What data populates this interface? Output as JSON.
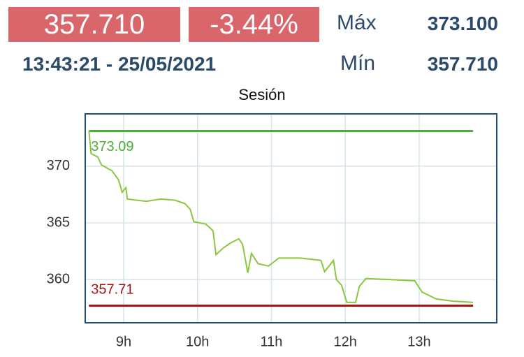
{
  "header": {
    "price": "357.710",
    "change": "-3.44%",
    "max_label": "Máx",
    "max_value": "373.100",
    "timestamp": "13:43:21 - 25/05/2021",
    "min_label": "Mín",
    "min_value": "357.710"
  },
  "chart_data": {
    "type": "line",
    "title": "Sesión",
    "x": [
      8.53,
      8.56,
      8.65,
      8.7,
      8.84,
      8.93,
      8.98,
      9.03,
      9.05,
      9.17,
      9.31,
      9.5,
      9.69,
      9.83,
      9.9,
      9.95,
      10.11,
      10.21,
      10.25,
      10.35,
      10.44,
      10.56,
      10.61,
      10.68,
      10.73,
      10.82,
      10.96,
      11.1,
      11.39,
      11.67,
      11.72,
      11.84,
      11.88,
      11.95,
      12.02,
      12.14,
      12.19,
      12.28,
      12.61,
      12.94,
      13.04,
      13.23,
      13.46,
      13.73
    ],
    "series": [
      {
        "color": "#8cc63f",
        "values": [
          373.1,
          371.1,
          370.8,
          370.1,
          369.6,
          368.8,
          367.7,
          368.1,
          367.1,
          367.0,
          366.9,
          367.1,
          367.0,
          366.7,
          366.2,
          365.1,
          364.9,
          364.3,
          362.2,
          362.8,
          363.2,
          363.6,
          363.1,
          360.6,
          362.3,
          361.4,
          361.2,
          361.9,
          361.9,
          361.7,
          360.7,
          361.7,
          360.0,
          359.5,
          358.0,
          358.0,
          359.4,
          360.1,
          360.0,
          359.9,
          358.9,
          358.3,
          358.1,
          358.0
        ]
      }
    ],
    "reference_lines": [
      {
        "value": 373.09,
        "color": "#4caf3a"
      },
      {
        "value": 357.71,
        "color": "#a31515"
      }
    ],
    "xlim": [
      8.48,
      14.05
    ],
    "ylim": [
      356.2,
      374.6
    ],
    "xticks": [
      {
        "value": 9,
        "label": "9h"
      },
      {
        "value": 10,
        "label": "10h"
      },
      {
        "value": 11,
        "label": "11h"
      },
      {
        "value": 12,
        "label": "12h"
      },
      {
        "value": 13,
        "label": "13h"
      }
    ],
    "yticks": [
      360,
      365,
      370
    ],
    "grid": true
  }
}
